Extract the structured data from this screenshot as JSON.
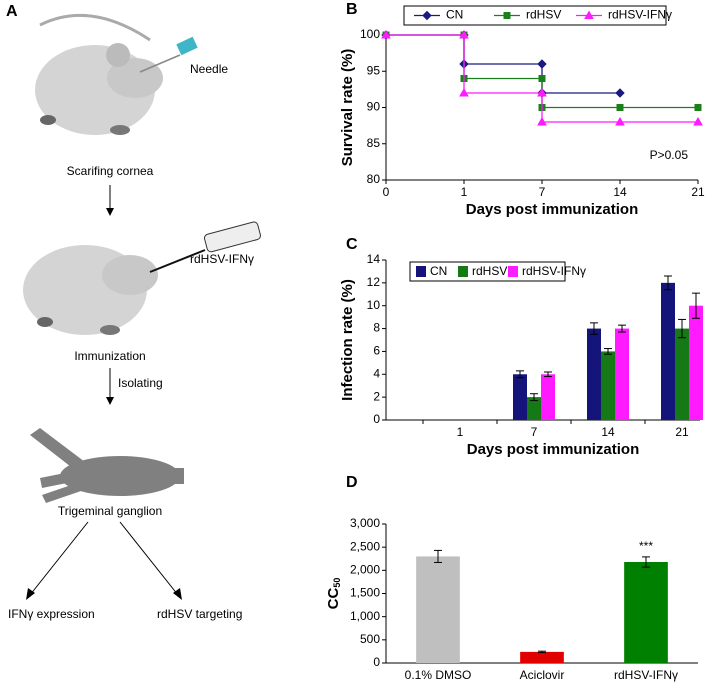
{
  "panel_labels": [
    "A",
    "B",
    "C",
    "D"
  ],
  "diagram": {
    "needle": "Needle",
    "scarifying": "Scarifing cornea",
    "virus": "rdHSV-IFNγ",
    "immunization": "Immunization",
    "isolating": "Isolating",
    "ganglion": "Trigeminal ganglion",
    "expression": "IFNγ expression",
    "targeting": "rdHSV targeting"
  },
  "chart_data": [
    {
      "type": "step",
      "x_label": "Days post immunization",
      "y_label": "Survival rate (%)",
      "categories": [
        "0",
        "1",
        "7",
        "14",
        "21"
      ],
      "ylim": [
        80,
        100
      ],
      "yticks": [
        80,
        85,
        90,
        95,
        100
      ],
      "annotation": "P>0.05",
      "legend": "top-outside",
      "series": [
        {
          "name": "CN",
          "color": "#1a1a80",
          "marker": "diamond",
          "values": [
            100,
            96,
            92,
            92,
            null
          ]
        },
        {
          "name": "rdHSV",
          "color": "#1a801a",
          "marker": "square",
          "values": [
            100,
            94,
            90,
            90,
            90
          ]
        },
        {
          "name": "rdHSV-IFNγ",
          "color": "#ff1aff",
          "marker": "triangle",
          "values": [
            100,
            92,
            88,
            88,
            88
          ]
        }
      ]
    },
    {
      "type": "grouped-bar",
      "x_label": "Days post immunization",
      "y_label": "Infection rate (%)",
      "categories": [
        "1",
        "7",
        "14",
        "21"
      ],
      "ylim": [
        0,
        14
      ],
      "yticks": [
        0,
        2,
        4,
        6,
        8,
        10,
        12,
        14
      ],
      "legend": "top-left",
      "series": [
        {
          "name": "CN",
          "color": "#14147a",
          "values": [
            0,
            4,
            8,
            12
          ],
          "errors": [
            null,
            0.3,
            0.5,
            0.6
          ]
        },
        {
          "name": "rdHSV",
          "color": "#157a15",
          "values": [
            0,
            2,
            6,
            8
          ],
          "errors": [
            null,
            0.3,
            0.25,
            0.8
          ]
        },
        {
          "name": "rdHSV-IFNγ",
          "color": "#ff1aff",
          "values": [
            0,
            4,
            8,
            10
          ],
          "errors": [
            null,
            0.2,
            0.3,
            1.1
          ]
        }
      ]
    },
    {
      "type": "bar",
      "y_label": "CC",
      "y_label_subscript": "50",
      "categories": [
        "0.1% DMSO",
        "Aciclovir",
        "rdHSV-IFNγ"
      ],
      "values": [
        2300,
        240,
        2180
      ],
      "errors": [
        130,
        15,
        110
      ],
      "colors": [
        "#bfbfbf",
        "#e00000",
        "#008000"
      ],
      "annotations": [
        null,
        null,
        "***"
      ],
      "ylim": [
        0,
        3000
      ],
      "yticks": [
        0,
        500,
        {
          "value": 1000,
          "label": "1,000"
        },
        {
          "value": 1500,
          "label": "1,500"
        },
        {
          "value": 2000,
          "label": "2,000"
        },
        {
          "value": 2500,
          "label": "2,500"
        },
        {
          "value": 3000,
          "label": "3,000"
        }
      ]
    }
  ]
}
